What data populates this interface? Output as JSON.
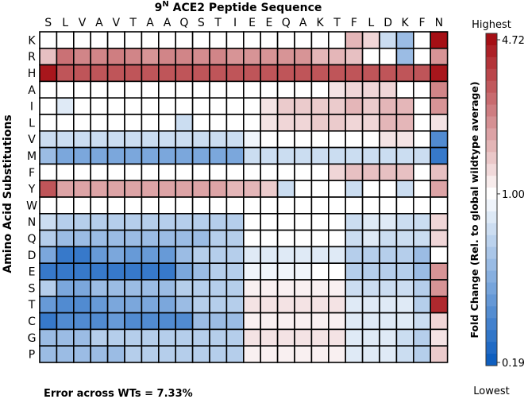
{
  "chart_data": {
    "type": "heatmap",
    "title_base": "9",
    "title_sup": "N",
    "title_rest": " ACE2 Peptide Sequence",
    "ylabel": "Amino Acid Substitutions",
    "columns": [
      "S",
      "L",
      "V",
      "A",
      "V",
      "T",
      "A",
      "A",
      "Q",
      "S",
      "T",
      "I",
      "E",
      "E",
      "Q",
      "A",
      "K",
      "T",
      "F",
      "L",
      "D",
      "K",
      "F",
      "N"
    ],
    "rows": [
      "K",
      "R",
      "H",
      "A",
      "I",
      "L",
      "V",
      "M",
      "F",
      "Y",
      "W",
      "N",
      "Q",
      "D",
      "E",
      "S",
      "T",
      "C",
      "G",
      "P"
    ],
    "color_scale": {
      "label": "Fold Change (Rel. to global wildtype average)",
      "top_label": "Highest",
      "bottom_label": "Lowest",
      "tick_labels": [
        "4.72",
        "1.00",
        "0.19"
      ],
      "tick_values": [
        4.72,
        1.0,
        0.19
      ],
      "log_scale": true,
      "low_color": "#0f5fbf",
      "mid_color": "#ffffff",
      "high_color": "#a50f15"
    },
    "values": [
      [
        1.0,
        1.0,
        1.0,
        1.0,
        1.0,
        1.0,
        1.0,
        1.0,
        1.0,
        1.0,
        1.0,
        1.0,
        1.0,
        1.0,
        1.0,
        1.0,
        1.0,
        1.0,
        1.6,
        1.3,
        0.7,
        0.5,
        1.0,
        4.72
      ],
      [
        1.5,
        2.5,
        2.2,
        2.2,
        2.3,
        2.2,
        2.0,
        2.2,
        2.2,
        2.1,
        2.2,
        2.0,
        2.0,
        2.0,
        2.0,
        2.0,
        1.6,
        1.6,
        1.5,
        1.0,
        1.0,
        0.5,
        1.0,
        2.0
      ],
      [
        4.5,
        3.0,
        3.0,
        3.0,
        3.0,
        3.0,
        3.0,
        3.0,
        3.0,
        3.0,
        3.0,
        3.0,
        3.0,
        3.0,
        3.0,
        3.0,
        3.0,
        3.0,
        3.0,
        3.0,
        3.0,
        3.0,
        3.0,
        4.5
      ],
      [
        1.0,
        1.0,
        1.0,
        1.0,
        1.0,
        1.0,
        1.0,
        1.0,
        1.0,
        1.0,
        1.0,
        1.0,
        1.0,
        1.0,
        1.0,
        1.0,
        1.0,
        1.2,
        1.3,
        1.3,
        1.3,
        1.0,
        1.0,
        2.2
      ],
      [
        1.0,
        0.8,
        1.0,
        1.0,
        1.0,
        1.0,
        1.0,
        1.0,
        1.0,
        1.0,
        1.0,
        1.0,
        1.0,
        1.2,
        1.4,
        1.4,
        1.4,
        1.4,
        1.6,
        1.4,
        1.6,
        1.6,
        1.0,
        2.0
      ],
      [
        1.0,
        1.0,
        1.0,
        1.0,
        1.0,
        1.0,
        1.0,
        1.0,
        0.7,
        1.0,
        1.0,
        1.0,
        1.0,
        1.2,
        1.3,
        1.3,
        1.4,
        1.4,
        1.3,
        1.3,
        1.6,
        1.6,
        1.0,
        1.2
      ],
      [
        0.7,
        0.7,
        0.7,
        0.7,
        0.7,
        0.7,
        0.7,
        0.7,
        0.7,
        0.7,
        0.7,
        0.7,
        0.9,
        1.0,
        1.0,
        1.0,
        1.0,
        1.0,
        1.0,
        1.0,
        1.2,
        1.2,
        1.0,
        0.3
      ],
      [
        0.5,
        0.4,
        0.4,
        0.4,
        0.4,
        0.4,
        0.4,
        0.4,
        0.4,
        0.4,
        0.4,
        0.4,
        0.7,
        0.7,
        0.7,
        0.7,
        0.7,
        0.7,
        0.7,
        0.7,
        0.7,
        0.7,
        0.7,
        0.25
      ],
      [
        1.0,
        1.0,
        1.0,
        1.0,
        1.0,
        1.0,
        1.0,
        1.0,
        1.0,
        1.0,
        1.0,
        1.0,
        1.0,
        1.0,
        1.0,
        1.0,
        1.0,
        1.3,
        1.5,
        1.5,
        1.5,
        1.5,
        1.0,
        1.5
      ],
      [
        3.0,
        1.8,
        1.8,
        1.8,
        1.8,
        1.8,
        1.8,
        1.8,
        1.8,
        1.8,
        1.8,
        1.6,
        1.6,
        1.4,
        0.7,
        1.0,
        1.0,
        1.0,
        0.7,
        1.0,
        1.0,
        0.7,
        1.0,
        1.8
      ],
      [
        1.0,
        1.0,
        1.0,
        1.0,
        1.0,
        1.0,
        1.0,
        1.0,
        1.0,
        1.0,
        1.0,
        1.0,
        1.0,
        1.0,
        1.0,
        1.0,
        1.0,
        1.0,
        1.0,
        1.0,
        1.0,
        1.0,
        1.0,
        1.0
      ],
      [
        0.7,
        0.6,
        0.6,
        0.6,
        0.6,
        0.6,
        0.6,
        0.6,
        0.6,
        0.6,
        0.6,
        0.6,
        1.0,
        1.0,
        1.0,
        1.0,
        1.0,
        1.0,
        0.7,
        0.8,
        0.8,
        0.7,
        0.7,
        1.3
      ],
      [
        0.6,
        0.5,
        0.5,
        0.5,
        0.5,
        0.5,
        0.5,
        0.5,
        0.5,
        0.5,
        0.6,
        0.6,
        1.0,
        1.0,
        1.0,
        1.0,
        1.0,
        1.0,
        0.7,
        0.8,
        0.7,
        0.7,
        0.7,
        1.3
      ],
      [
        0.4,
        0.25,
        0.25,
        0.35,
        0.4,
        0.35,
        0.35,
        0.35,
        0.5,
        0.6,
        0.6,
        0.6,
        0.8,
        0.8,
        0.8,
        0.8,
        0.8,
        0.8,
        0.6,
        0.6,
        0.6,
        0.6,
        0.5,
        1.0
      ],
      [
        0.25,
        0.25,
        0.25,
        0.25,
        0.25,
        0.25,
        0.25,
        0.25,
        0.4,
        0.5,
        0.6,
        0.6,
        0.9,
        0.9,
        0.9,
        0.9,
        1.0,
        1.0,
        0.6,
        0.6,
        0.6,
        0.6,
        0.5,
        2.0
      ],
      [
        0.6,
        0.4,
        0.4,
        0.5,
        0.5,
        0.5,
        0.5,
        0.5,
        0.6,
        0.6,
        0.6,
        0.6,
        1.1,
        1.1,
        1.1,
        1.1,
        1.1,
        1.1,
        0.7,
        0.7,
        0.7,
        0.7,
        0.6,
        2.0
      ],
      [
        0.35,
        0.3,
        0.3,
        0.35,
        0.4,
        0.4,
        0.4,
        0.4,
        0.5,
        0.6,
        0.6,
        0.6,
        1.2,
        1.2,
        1.2,
        1.2,
        1.2,
        1.2,
        0.8,
        0.8,
        0.8,
        0.8,
        0.6,
        4.0
      ],
      [
        0.25,
        0.3,
        0.3,
        0.3,
        0.35,
        0.3,
        0.3,
        0.3,
        0.3,
        0.5,
        0.5,
        0.5,
        1.1,
        1.1,
        1.1,
        1.1,
        1.1,
        1.1,
        0.8,
        0.8,
        0.8,
        0.8,
        0.7,
        1.3
      ],
      [
        0.5,
        0.5,
        0.5,
        0.6,
        0.6,
        0.6,
        0.6,
        0.6,
        0.6,
        0.6,
        0.6,
        0.6,
        1.2,
        1.2,
        1.2,
        1.2,
        1.2,
        1.2,
        0.8,
        0.8,
        0.8,
        0.7,
        0.6,
        1.2
      ],
      [
        0.5,
        0.5,
        0.5,
        0.5,
        0.5,
        0.6,
        0.6,
        0.6,
        0.6,
        0.6,
        0.6,
        0.6,
        1.1,
        1.1,
        1.1,
        1.1,
        1.1,
        1.1,
        0.8,
        0.8,
        0.8,
        0.7,
        0.6,
        1.4
      ]
    ]
  },
  "footnote": "Error across WTs = 7.33%"
}
